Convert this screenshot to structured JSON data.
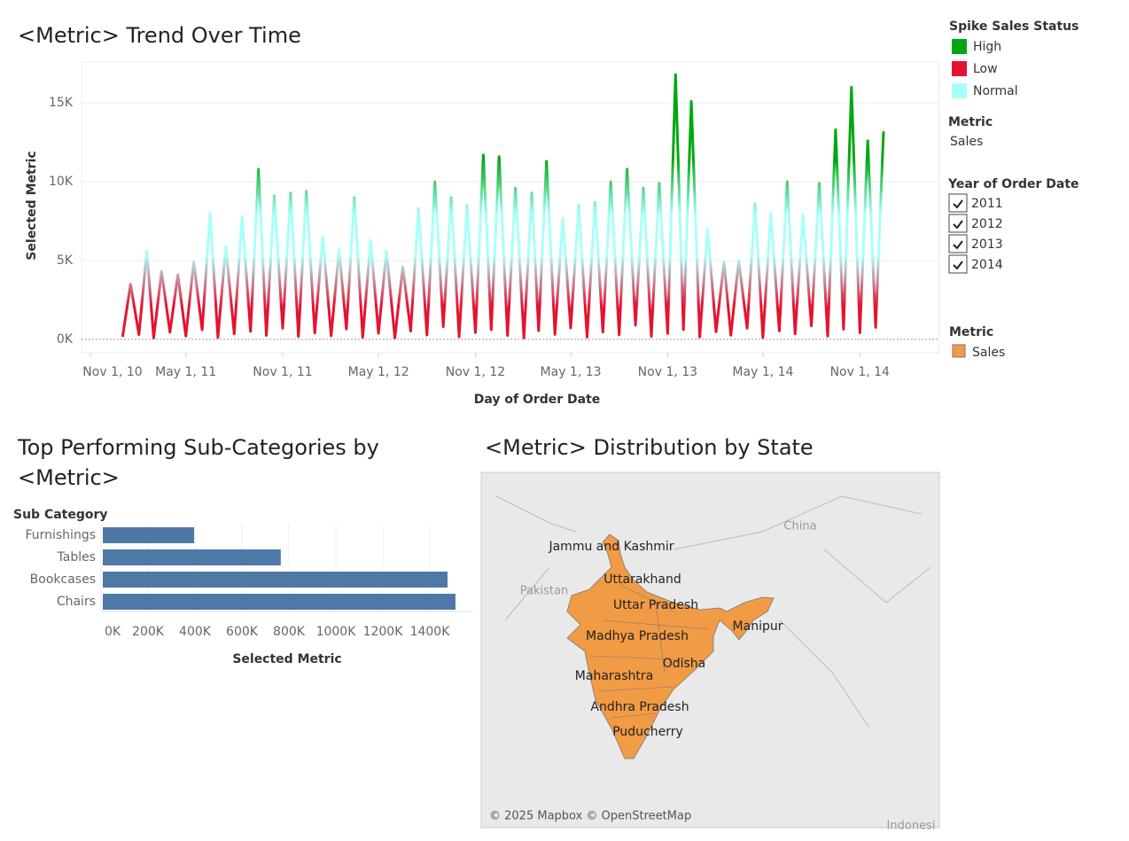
{
  "chart_data": [
    {
      "type": "line",
      "title": "<Metric> Trend Over Time",
      "x_label": "Day of Order Date",
      "y_label": "Selected Metric",
      "x": [
        "2011-01-01",
        "2011-01-16",
        "2011-02-01",
        "2011-02-16",
        "2011-03-01",
        "2011-03-16",
        "2011-04-01",
        "2011-04-16",
        "2011-05-01",
        "2011-05-16",
        "2011-06-01",
        "2011-06-16",
        "2011-07-01",
        "2011-07-16",
        "2011-08-01",
        "2011-08-16",
        "2011-09-01",
        "2011-09-16",
        "2011-10-01",
        "2011-10-16",
        "2011-11-01",
        "2011-11-16",
        "2011-12-01",
        "2011-12-16",
        "2012-01-01",
        "2012-01-16",
        "2012-02-01",
        "2012-02-16",
        "2012-03-01",
        "2012-03-16",
        "2012-04-01",
        "2012-04-16",
        "2012-05-01",
        "2012-05-16",
        "2012-06-01",
        "2012-06-16",
        "2012-07-01",
        "2012-07-16",
        "2012-08-01",
        "2012-08-16",
        "2012-09-01",
        "2012-09-16",
        "2012-10-01",
        "2012-10-16",
        "2012-11-01",
        "2012-11-16",
        "2012-12-01",
        "2012-12-16",
        "2013-01-01",
        "2013-01-16",
        "2013-02-01",
        "2013-02-16",
        "2013-03-01",
        "2013-03-16",
        "2013-04-01",
        "2013-04-16",
        "2013-05-01",
        "2013-05-16",
        "2013-06-01",
        "2013-06-16",
        "2013-07-01",
        "2013-07-16",
        "2013-08-01",
        "2013-08-16",
        "2013-09-01",
        "2013-09-16",
        "2013-10-01",
        "2013-10-16",
        "2013-11-01",
        "2013-11-16",
        "2013-12-01",
        "2013-12-16",
        "2014-01-01",
        "2014-01-16",
        "2014-02-01",
        "2014-02-16",
        "2014-03-01",
        "2014-03-16",
        "2014-04-01",
        "2014-04-16",
        "2014-05-01",
        "2014-05-16",
        "2014-06-01",
        "2014-06-16",
        "2014-07-01",
        "2014-07-16",
        "2014-08-01",
        "2014-08-16",
        "2014-09-01",
        "2014-09-16",
        "2014-10-01",
        "2014-10-16",
        "2014-11-01",
        "2014-11-16",
        "2014-12-01",
        "2014-12-16"
      ],
      "series": [
        {
          "name": "Sales",
          "values": [
            150,
            3500,
            300,
            5600,
            90,
            4300,
            450,
            4100,
            200,
            4900,
            600,
            8000,
            120,
            5900,
            350,
            7800,
            500,
            10800,
            250,
            9100,
            700,
            9300,
            180,
            9400,
            400,
            6500,
            220,
            5700,
            650,
            9000,
            130,
            6300,
            380,
            5600,
            90,
            4600,
            520,
            8300,
            270,
            10000,
            800,
            9000,
            160,
            8500,
            430,
            11700,
            610,
            11600,
            240,
            9600,
            90,
            9300,
            550,
            11300,
            310,
            7700,
            720,
            8500,
            140,
            8700,
            460,
            10000,
            280,
            10800,
            900,
            9600,
            190,
            9900,
            370,
            16800,
            620,
            15100,
            150,
            7000,
            480,
            4900,
            260,
            5000,
            700,
            8600,
            110,
            8000,
            530,
            10000,
            340,
            7900,
            850,
            9900,
            200,
            13300,
            640,
            16000,
            420,
            12600,
            760,
            13200
          ]
        }
      ],
      "xlim": [
        "2010-10-15",
        "2015-04-01"
      ],
      "xticks": [
        {
          "value": "2010-11-01",
          "label": "Nov 1, 10"
        },
        {
          "value": "2011-05-01",
          "label": "May 1, 11"
        },
        {
          "value": "2011-11-01",
          "label": "Nov 1, 11"
        },
        {
          "value": "2012-05-01",
          "label": "May 1, 12"
        },
        {
          "value": "2012-11-01",
          "label": "Nov 1, 12"
        },
        {
          "value": "2013-05-01",
          "label": "May 1, 13"
        },
        {
          "value": "2013-11-01",
          "label": "Nov 1, 13"
        },
        {
          "value": "2014-05-01",
          "label": "May 1, 14"
        },
        {
          "value": "2014-11-01",
          "label": "Nov 1, 14"
        }
      ],
      "ylim": [
        -850,
        17600
      ],
      "yticks": [
        {
          "value": 0,
          "label": "0K"
        },
        {
          "value": 5000,
          "label": "5K"
        },
        {
          "value": 10000,
          "label": "10K"
        },
        {
          "value": 15000,
          "label": "15K"
        }
      ],
      "grid": true,
      "legend": {
        "title": "Spike Sales Status",
        "items": [
          {
            "name": "High",
            "color": "#00a80f"
          },
          {
            "name": "Low",
            "color": "#e5132f"
          },
          {
            "name": "Normal",
            "color": "#a8fff9"
          }
        ]
      }
    },
    {
      "type": "bar",
      "orientation": "horizontal",
      "title": "Top Performing Sub-Categories by <Metric>",
      "y_label": "Sub Category",
      "x_label": "Selected Metric",
      "categories": [
        "Furnishings",
        "Tables",
        "Bookcases",
        "Chairs"
      ],
      "values": [
        389000,
        758000,
        1468000,
        1502000
      ],
      "color": "#4e79a7",
      "xlim": [
        0,
        1585000
      ],
      "xticks": [
        {
          "value": 0,
          "label": "0K"
        },
        {
          "value": 200000,
          "label": "200K"
        },
        {
          "value": 400000,
          "label": "400K"
        },
        {
          "value": 600000,
          "label": "600K"
        },
        {
          "value": 800000,
          "label": "800K"
        },
        {
          "value": 1000000,
          "label": "1000K"
        },
        {
          "value": 1200000,
          "label": "1200K"
        },
        {
          "value": 1400000,
          "label": "1400K"
        }
      ],
      "grid": true
    }
  ],
  "map": {
    "title": "<Metric> Distribution by State",
    "color": "#f29b45",
    "states": [
      "Jammu and Kashmir",
      "Uttarakhand",
      "Uttar Pradesh",
      "Manipur",
      "Madhya Pradesh",
      "Odisha",
      "Maharashtra",
      "Andhra Pradesh",
      "Puducherry"
    ],
    "places": [
      "China",
      "Pakistan",
      "Indonesi"
    ],
    "attribution": "© 2025 Mapbox © OpenStreetMap",
    "legend": {
      "title": "Metric",
      "items": [
        {
          "name": "Sales",
          "color": "#f29b45"
        }
      ]
    }
  },
  "filters": {
    "metric": {
      "title": "Metric",
      "value": "Sales"
    },
    "year": {
      "title": "Year of Order Date",
      "options": [
        "2011",
        "2012",
        "2013",
        "2014"
      ]
    }
  }
}
